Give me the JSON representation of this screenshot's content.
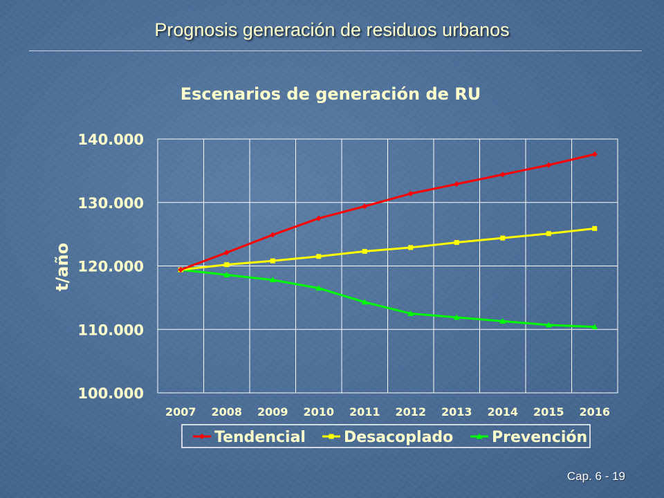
{
  "slide": {
    "title": "Prognosis generación de residuos urbanos",
    "footer": "Cap. 6 - 19"
  },
  "colors": {
    "tendencial": "#ff0000",
    "desacoplado": "#ffff00",
    "prevencion": "#00ff00",
    "text": "#ffffcc",
    "grid": "#ffffff"
  },
  "chart_data": {
    "type": "line",
    "title": "Escenarios de generación de RU",
    "xlabel": "",
    "ylabel": "t/año",
    "categories": [
      "2007",
      "2008",
      "2009",
      "2010",
      "2011",
      "2012",
      "2013",
      "2014",
      "2015",
      "2016"
    ],
    "ylim": [
      100000,
      140000
    ],
    "yticks": [
      100000,
      110000,
      120000,
      130000,
      140000
    ],
    "ytick_labels": [
      "100.000",
      "110.000",
      "120.000",
      "130.000",
      "140.000"
    ],
    "grid": true,
    "legend": "bottom",
    "series": [
      {
        "name": "Tendencial",
        "color": "#ff0000",
        "marker": "diamond",
        "values": [
          119400,
          122100,
          124900,
          127500,
          129400,
          131400,
          132900,
          134400,
          135900,
          137600
        ]
      },
      {
        "name": "Desacoplado",
        "color": "#ffff00",
        "marker": "square",
        "values": [
          119400,
          120200,
          120800,
          121500,
          122300,
          122900,
          123700,
          124400,
          125100,
          125900
        ]
      },
      {
        "name": "Prevención",
        "color": "#00ff00",
        "marker": "triangle",
        "values": [
          119400,
          118600,
          117800,
          116500,
          114300,
          112500,
          111900,
          111300,
          110700,
          110400
        ]
      }
    ]
  }
}
